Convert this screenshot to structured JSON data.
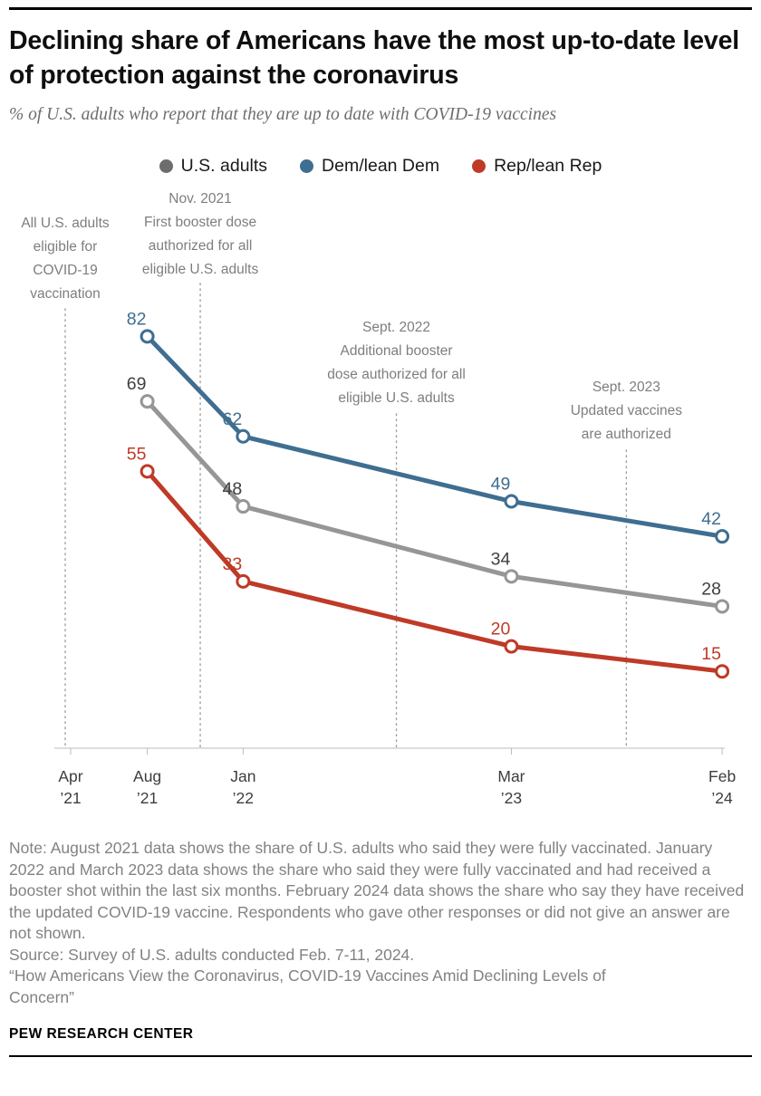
{
  "header": {
    "title": "Declining share of Americans have the most up-to-date level of protection against the coronavirus",
    "subtitle": "% of U.S. adults who report that they are up to date with COVID-19 vaccines"
  },
  "legend": [
    {
      "label": "U.S. adults",
      "color": "#6d6d6d"
    },
    {
      "label": "Dem/lean Dem",
      "color": "#3f6e90"
    },
    {
      "label": "Rep/lean Rep",
      "color": "#bf3a27"
    }
  ],
  "chart_data": {
    "type": "line",
    "x_categories": [
      "Aug 2021",
      "Jan 2022",
      "Mar 2023",
      "Feb 2024"
    ],
    "x_months_since_apr_2021": [
      4,
      9,
      23,
      34
    ],
    "ylim": [
      0,
      100
    ],
    "grid": false,
    "legend_position": "top",
    "series": [
      {
        "name": "Dem/lean Dem",
        "color": "#3f6e90",
        "values": [
          82,
          62,
          49,
          42
        ]
      },
      {
        "name": "U.S. adults",
        "color": "#969696",
        "label_color": "#404040",
        "values": [
          69,
          48,
          34,
          28
        ]
      },
      {
        "name": "Rep/lean Rep",
        "color": "#bf3a27",
        "values": [
          55,
          33,
          20,
          15
        ]
      }
    ],
    "x_axis_ticks": [
      {
        "month": 0,
        "label": [
          "Apr",
          "’21"
        ]
      },
      {
        "month": 4,
        "label": [
          "Aug",
          "’21"
        ]
      },
      {
        "month": 9,
        "label": [
          "Jan",
          "’22"
        ]
      },
      {
        "month": 23,
        "label": [
          "Mar",
          "’23"
        ]
      },
      {
        "month": 34,
        "label": [
          "Feb",
          "’24"
        ]
      }
    ],
    "annotations": [
      {
        "month": 0,
        "lines": [
          "All U.S. adults",
          "eligible for",
          "COVID-19",
          "vaccination"
        ]
      },
      {
        "month": 7,
        "lines": [
          "Nov. 2021",
          "First booster dose",
          "authorized for all",
          "eligible U.S. adults"
        ]
      },
      {
        "month": 17,
        "lines": [
          "Sept. 2022",
          "Additional booster",
          "dose authorized for all",
          "eligible U.S. adults"
        ]
      },
      {
        "month": 29,
        "lines": [
          "Sept. 2023",
          "Updated vaccines",
          "are authorized"
        ]
      }
    ]
  },
  "footer": {
    "note": "Note: August 2021 data shows the share of U.S. adults who said they were fully vaccinated. January 2022 and March 2023 data shows the share who said they were fully vaccinated and had received a booster shot within the last six months. February 2024 data shows the share who say they have received the updated COVID-19 vaccine. Respondents who gave other responses or did not give an answer are not shown.",
    "source": "Source: Survey of U.S. adults conducted Feb. 7-11, 2024.",
    "quote": "“How Americans View the Coronavirus, COVID-19 Vaccines Amid Declining Levels of Concern”",
    "brand": "PEW RESEARCH CENTER"
  }
}
